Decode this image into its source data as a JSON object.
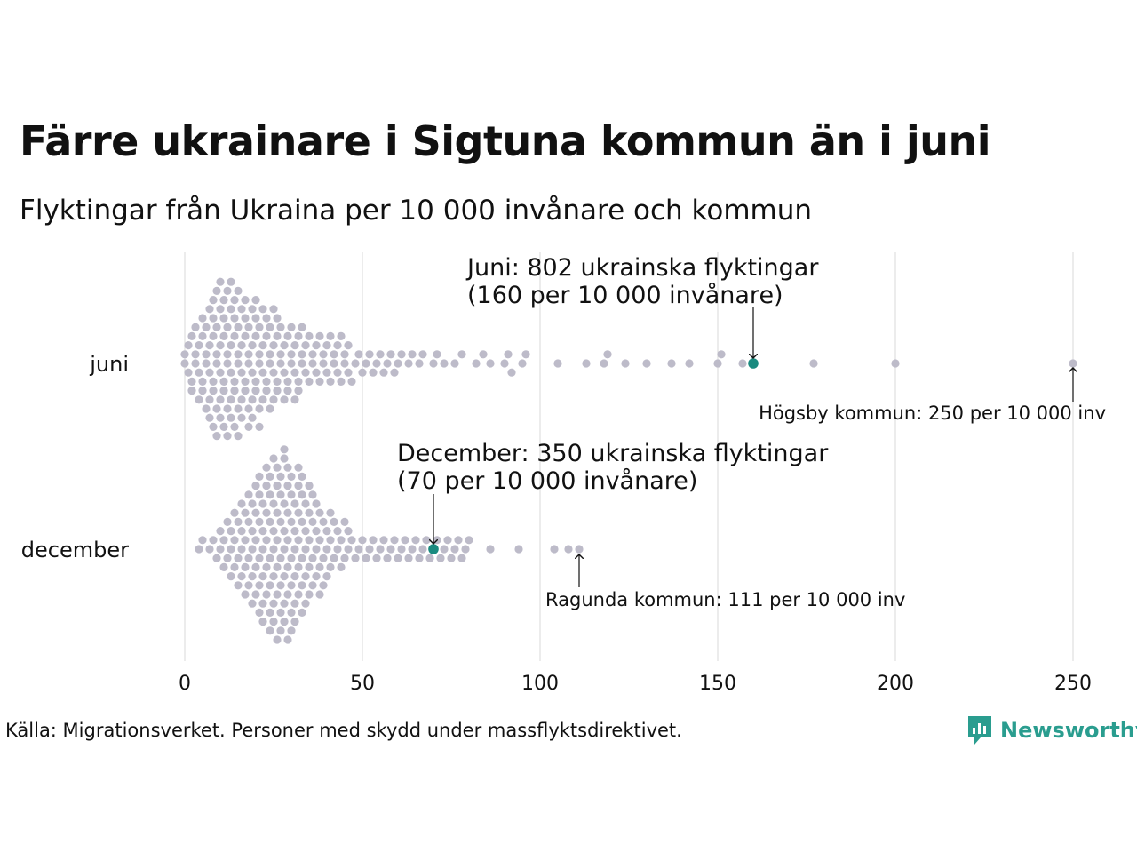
{
  "title": "Färre ukrainare i Sigtuna kommun än i juni",
  "subtitle": "Flyktingar från Ukraina per 10 000 invånare och kommun",
  "source": "Källa: Migrationsverket. Personer med skydd under massflyktsdirektivet.",
  "brand": {
    "name": "Newsworthy",
    "icon": "newsworthy-logo-icon",
    "color": "#2a9d8f"
  },
  "colors": {
    "dot": "#bdbbc9",
    "highlight": "#1a8a7f",
    "grid": "#d9d9d9"
  },
  "chart_data": {
    "type": "scatter",
    "subtype": "beeswarm",
    "xlabel": "",
    "ylabel": "",
    "xlim": [
      0,
      250
    ],
    "xticks": [
      0,
      50,
      100,
      150,
      200,
      250
    ],
    "xtick_labels": [
      "0",
      "50",
      "100",
      "150",
      "200",
      "250"
    ],
    "grid": true,
    "categories": [
      "juni",
      "december"
    ],
    "series": [
      {
        "name": "juni",
        "highlight_value": 160,
        "annotation": "Juni: 802 ukrainska flyktingar\n(160 per 10 000 invånare)",
        "max_value": 250,
        "max_annotation": "Högsby kommun: 250 per 10 000 inv",
        "values": [
          0,
          0,
          1,
          1,
          2,
          2,
          2,
          3,
          3,
          3,
          4,
          4,
          4,
          5,
          5,
          5,
          5,
          6,
          6,
          6,
          6,
          7,
          7,
          7,
          7,
          7,
          8,
          8,
          8,
          8,
          8,
          8,
          9,
          9,
          9,
          9,
          9,
          9,
          10,
          10,
          10,
          10,
          10,
          10,
          11,
          11,
          11,
          11,
          11,
          11,
          12,
          12,
          12,
          12,
          12,
          12,
          13,
          13,
          13,
          13,
          13,
          13,
          14,
          14,
          14,
          14,
          14,
          14,
          15,
          15,
          15,
          15,
          15,
          15,
          16,
          16,
          16,
          16,
          16,
          17,
          17,
          17,
          17,
          17,
          18,
          18,
          18,
          18,
          18,
          19,
          19,
          19,
          19,
          19,
          20,
          20,
          20,
          20,
          20,
          21,
          21,
          21,
          21,
          21,
          22,
          22,
          22,
          22,
          23,
          23,
          23,
          23,
          24,
          24,
          24,
          24,
          25,
          25,
          25,
          25,
          26,
          26,
          26,
          26,
          27,
          27,
          27,
          28,
          28,
          28,
          29,
          29,
          29,
          30,
          30,
          30,
          31,
          31,
          31,
          32,
          32,
          32,
          33,
          33,
          33,
          34,
          34,
          35,
          35,
          36,
          36,
          37,
          37,
          38,
          38,
          39,
          39,
          40,
          40,
          41,
          41,
          42,
          42,
          43,
          43,
          44,
          44,
          45,
          45,
          46,
          46,
          47,
          48,
          49,
          50,
          51,
          52,
          53,
          54,
          55,
          56,
          57,
          58,
          59,
          60,
          61,
          63,
          64,
          66,
          67,
          70,
          71,
          73,
          76,
          78,
          82,
          84,
          86,
          90,
          91,
          92,
          95,
          96,
          105,
          113,
          118,
          119,
          124,
          130,
          137,
          142,
          150,
          151,
          157,
          177,
          200,
          250
        ]
      },
      {
        "name": "december",
        "highlight_value": 70,
        "annotation": "December: 350 ukrainska flyktingar\n(70 per 10 000 invånare)",
        "max_value": 111,
        "max_annotation": "Ragunda kommun: 111 per 10 000 inv",
        "values": [
          4,
          5,
          7,
          8,
          9,
          10,
          10,
          11,
          11,
          12,
          12,
          13,
          13,
          13,
          14,
          14,
          14,
          15,
          15,
          15,
          16,
          16,
          16,
          16,
          17,
          17,
          17,
          17,
          18,
          18,
          18,
          18,
          19,
          19,
          19,
          19,
          19,
          20,
          20,
          20,
          20,
          20,
          21,
          21,
          21,
          21,
          21,
          21,
          22,
          22,
          22,
          22,
          22,
          22,
          23,
          23,
          23,
          23,
          23,
          23,
          24,
          24,
          24,
          24,
          24,
          24,
          24,
          25,
          25,
          25,
          25,
          25,
          25,
          25,
          26,
          26,
          26,
          26,
          26,
          26,
          26,
          27,
          27,
          27,
          27,
          27,
          27,
          27,
          28,
          28,
          28,
          28,
          28,
          28,
          28,
          28,
          29,
          29,
          29,
          29,
          29,
          29,
          29,
          30,
          30,
          30,
          30,
          30,
          30,
          30,
          31,
          31,
          31,
          31,
          31,
          31,
          32,
          32,
          32,
          32,
          32,
          32,
          33,
          33,
          33,
          33,
          33,
          33,
          34,
          34,
          34,
          34,
          34,
          35,
          35,
          35,
          35,
          35,
          36,
          36,
          36,
          36,
          37,
          37,
          37,
          37,
          38,
          38,
          38,
          38,
          39,
          39,
          39,
          40,
          40,
          40,
          41,
          41,
          41,
          42,
          42,
          43,
          43,
          44,
          44,
          45,
          45,
          46,
          46,
          47,
          48,
          49,
          50,
          51,
          52,
          53,
          54,
          55,
          56,
          57,
          58,
          59,
          60,
          61,
          62,
          63,
          64,
          65,
          66,
          67,
          68,
          69,
          70,
          71,
          72,
          73,
          74,
          75,
          76,
          77,
          78,
          79,
          80,
          86,
          94,
          104,
          108,
          111
        ]
      }
    ]
  }
}
